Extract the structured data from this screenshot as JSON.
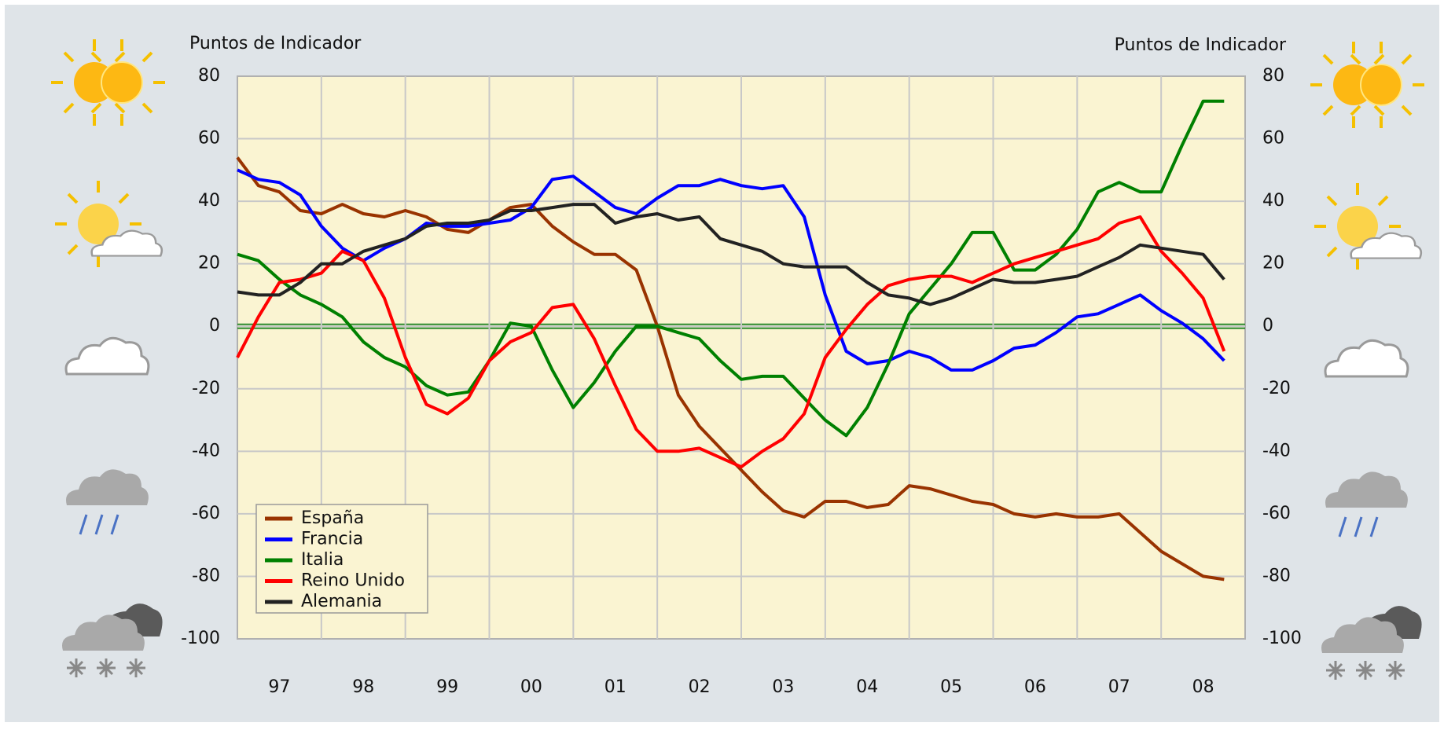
{
  "chart_data": {
    "type": "line",
    "y_label": "Puntos de Indicador",
    "y2_label": "Puntos de Indicador",
    "x": [
      1997,
      1997.25,
      1997.5,
      1997.75,
      1998,
      1998.25,
      1998.5,
      1998.75,
      1999,
      1999.25,
      1999.5,
      1999.75,
      2000,
      2000.25,
      2000.5,
      2000.75,
      2001,
      2001.25,
      2001.5,
      2001.75,
      2002,
      2002.25,
      2002.5,
      2002.75,
      2003,
      2003.25,
      2003.5,
      2003.75,
      2004,
      2004.25,
      2004.5,
      2004.75,
      2005,
      2005.25,
      2005.5,
      2005.75,
      2006,
      2006.25,
      2006.5,
      2006.75,
      2007,
      2007.25,
      2007.5,
      2007.75,
      2008,
      2008.25,
      2008.5,
      2008.75
    ],
    "series": [
      {
        "name": "España",
        "color": "#993300",
        "values": [
          54,
          45,
          43,
          37,
          36,
          39,
          36,
          35,
          37,
          35,
          31,
          30,
          34,
          38,
          39,
          32,
          27,
          23,
          23,
          18,
          0,
          -22,
          -32,
          -39,
          -46,
          -53,
          -59,
          -61,
          -56,
          -56,
          -58,
          -57,
          -51,
          -52,
          -54,
          -56,
          -57,
          -60,
          -61,
          -60,
          -61,
          -61,
          -60,
          -66,
          -72,
          -76,
          -80,
          -81
        ]
      },
      {
        "name": "Francia",
        "color": "#0000ff",
        "values": [
          50,
          47,
          46,
          42,
          32,
          25,
          21,
          25,
          28,
          33,
          32,
          32,
          33,
          34,
          38,
          47,
          48,
          43,
          38,
          36,
          41,
          45,
          45,
          47,
          45,
          44,
          45,
          35,
          10,
          -8,
          -12,
          -11,
          -8,
          -10,
          -14,
          -14,
          -11,
          -7,
          -6,
          -2,
          3,
          4,
          7,
          10,
          5,
          1,
          -4,
          -11
        ]
      },
      {
        "name": "Italia",
        "color": "#008000",
        "values": [
          23,
          21,
          15,
          10,
          7,
          3,
          -5,
          -10,
          -13,
          -19,
          -22,
          -21,
          -11,
          1,
          0,
          -14,
          -26,
          -18,
          -8,
          0,
          0,
          -2,
          -4,
          -11,
          -17,
          -16,
          -16,
          -23,
          -30,
          -35,
          -26,
          -12,
          4,
          12,
          20,
          30,
          30,
          18,
          18,
          23,
          31,
          43,
          46,
          43,
          43,
          58,
          72,
          72
        ]
      },
      {
        "name": "Reino Unido",
        "color": "#ff0000",
        "values": [
          -10,
          3,
          14,
          15,
          17,
          24,
          21,
          9,
          -10,
          -25,
          -28,
          -23,
          -11,
          -5,
          -2,
          6,
          7,
          -4,
          -19,
          -33,
          -40,
          -40,
          -39,
          -42,
          -45,
          -40,
          -36,
          -28,
          -10,
          -1,
          7,
          13,
          15,
          16,
          16,
          14,
          17,
          20,
          22,
          24,
          26,
          28,
          33,
          35,
          24,
          17,
          9,
          -8
        ]
      },
      {
        "name": "Alemania",
        "color": "#222222",
        "values": [
          11,
          10,
          10,
          14,
          20,
          20,
          24,
          26,
          28,
          32,
          33,
          33,
          34,
          37,
          37,
          38,
          39,
          39,
          33,
          35,
          36,
          34,
          35,
          28,
          26,
          24,
          20,
          19,
          19,
          19,
          14,
          10,
          9,
          7,
          9,
          12,
          15,
          14,
          14,
          15,
          16,
          19,
          22,
          26,
          25,
          24,
          23,
          15
        ]
      }
    ],
    "xlim": [
      1997,
      2009
    ],
    "xticks": [
      {
        "value": 1997.5,
        "label": "97"
      },
      {
        "value": 1998.5,
        "label": "98"
      },
      {
        "value": 1999.5,
        "label": "99"
      },
      {
        "value": 2000.5,
        "label": "00"
      },
      {
        "value": 2001.5,
        "label": "01"
      },
      {
        "value": 2002.5,
        "label": "02"
      },
      {
        "value": 2003.5,
        "label": "03"
      },
      {
        "value": 2004.5,
        "label": "04"
      },
      {
        "value": 2005.5,
        "label": "05"
      },
      {
        "value": 2006.5,
        "label": "06"
      },
      {
        "value": 2007.5,
        "label": "07"
      },
      {
        "value": 2008.5,
        "label": "08"
      }
    ],
    "xgrid": [
      1998,
      1999,
      2000,
      2001,
      2002,
      2003,
      2004,
      2005,
      2006,
      2007,
      2008
    ],
    "ylim": [
      -100,
      80
    ],
    "yticks": [
      -100,
      -80,
      -60,
      -40,
      -20,
      0,
      20,
      40,
      60,
      80
    ],
    "y2lim": [
      -100,
      80
    ],
    "y2ticks": [
      -100,
      -80,
      -60,
      -40,
      -20,
      0,
      20,
      40,
      60,
      80
    ],
    "grid": true,
    "zero_line_color": "#2e8b2e",
    "legend": "lower left"
  }
}
